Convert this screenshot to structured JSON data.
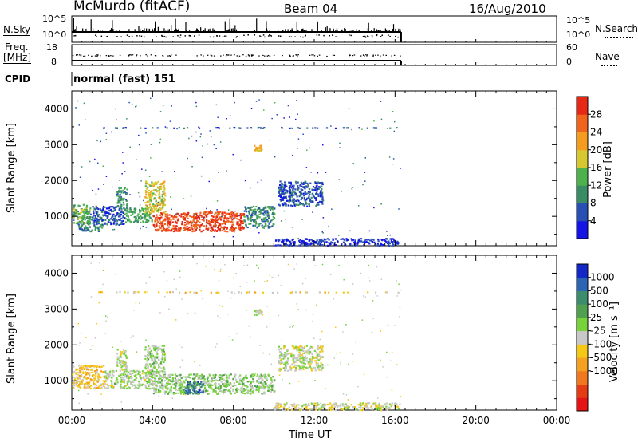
{
  "header": {
    "title": "McMurdo (fitACF)",
    "beam": "Beam 04",
    "date": "16/Aug/2010"
  },
  "strip_nsky": {
    "left_label": "N.Sky",
    "left_ticks": [
      "10^5",
      "10^0"
    ],
    "right_ticks": [
      "10^5",
      "10^0"
    ],
    "right_label": "N.Search"
  },
  "strip_freq": {
    "left_label_1": "Freq.",
    "left_label_2": "[MHz]",
    "left_ticks": [
      "18",
      "8"
    ],
    "right_ticks": [
      "60",
      "0"
    ],
    "right_label": "Nave"
  },
  "cpid": {
    "label": "CPID",
    "value": "normal (fast) 151"
  },
  "panels": {
    "ylabel": "Slant Range [km]",
    "yticks": [
      "4000",
      "3000",
      "2000",
      "1000"
    ],
    "xlabel": "Time UT",
    "xticks": [
      "00:00",
      "04:00",
      "08:00",
      "12:00",
      "16:00",
      "20:00",
      "00:00"
    ]
  },
  "colorbars": {
    "power": {
      "label": "Power [dB]",
      "ticks": [
        "28",
        "24",
        "20",
        "16",
        "12",
        "8",
        "4"
      ],
      "colors": [
        "#1414e6",
        "#2850b4",
        "#3a8c64",
        "#4db24d",
        "#d8c830",
        "#f59b1e",
        "#f0641e",
        "#e62814"
      ]
    },
    "velocity": {
      "label": "Velocity [m s⁻¹]",
      "ticks": [
        "1000",
        "500",
        "100",
        "25",
        "-25",
        "-100",
        "-500",
        "-1000"
      ],
      "colors": [
        "#1428c8",
        "#2e64b4",
        "#3c8c6e",
        "#50a050",
        "#78d23c",
        "#c8c8c8",
        "#f5c814",
        "#f5a01e",
        "#f0781e",
        "#e63c14",
        "#e61414"
      ]
    }
  },
  "chart_data": [
    {
      "type": "heatmap",
      "title": "Power [dB]",
      "xlabel": "Time UT",
      "ylabel": "Slant Range [km]",
      "xlim": [
        0,
        24
      ],
      "ylim": [
        180,
        4500
      ],
      "x_units": "hours UT",
      "data_end_hour": 16.3,
      "clim": [
        0,
        32
      ],
      "regions": [
        {
          "x": [
            0.0,
            0.9
          ],
          "y": [
            800,
            1350
          ],
          "value": 14
        },
        {
          "x": [
            0.3,
            1.5
          ],
          "y": [
            600,
            1000
          ],
          "value": 10
        },
        {
          "x": [
            1.0,
            2.6
          ],
          "y": [
            780,
            1300
          ],
          "value": 6
        },
        {
          "x": [
            2.6,
            4.0
          ],
          "y": [
            850,
            1250
          ],
          "value": 12
        },
        {
          "x": [
            4.0,
            8.5
          ],
          "y": [
            600,
            1150
          ],
          "value": 28
        },
        {
          "x": [
            8.5,
            10.0
          ],
          "y": [
            700,
            1300
          ],
          "value": 10
        },
        {
          "x": [
            3.6,
            4.6
          ],
          "y": [
            1100,
            2000
          ],
          "value": 18
        },
        {
          "x": [
            2.2,
            2.7
          ],
          "y": [
            1300,
            1850
          ],
          "value": 10
        },
        {
          "x": [
            9.0,
            9.4
          ],
          "y": [
            2850,
            3000
          ],
          "value": 20
        },
        {
          "x": [
            10.2,
            12.4
          ],
          "y": [
            1300,
            2000
          ],
          "value": 6
        },
        {
          "x": [
            1.2,
            16.2
          ],
          "y": [
            3480,
            3500
          ],
          "value": 6
        },
        {
          "x": [
            10.0,
            16.2
          ],
          "y": [
            200,
            400
          ],
          "value": 4
        }
      ]
    },
    {
      "type": "heatmap",
      "title": "Velocity [m s⁻¹]",
      "xlabel": "Time UT",
      "ylabel": "Slant Range [km]",
      "xlim": [
        0,
        24
      ],
      "ylim": [
        180,
        4500
      ],
      "x_units": "hours UT",
      "data_end_hour": 16.3,
      "clim": [
        -1000,
        1000
      ],
      "regions": [
        {
          "x": [
            0.0,
            1.6
          ],
          "y": [
            800,
            1450
          ],
          "value": -200
        },
        {
          "x": [
            1.6,
            4.0
          ],
          "y": [
            800,
            1300
          ],
          "value": 80
        },
        {
          "x": [
            4.0,
            10.0
          ],
          "y": [
            650,
            1200
          ],
          "value": 150
        },
        {
          "x": [
            5.5,
            6.5
          ],
          "y": [
            650,
            1000
          ],
          "value": 700
        },
        {
          "x": [
            3.6,
            4.6
          ],
          "y": [
            1100,
            2000
          ],
          "value": 100
        },
        {
          "x": [
            2.2,
            2.7
          ],
          "y": [
            1300,
            1900
          ],
          "value": 80
        },
        {
          "x": [
            9.0,
            9.4
          ],
          "y": [
            2850,
            3000
          ],
          "value": 60
        },
        {
          "x": [
            10.2,
            12.4
          ],
          "y": [
            1300,
            2000
          ],
          "value": 30
        },
        {
          "x": [
            1.2,
            16.2
          ],
          "y": [
            3480,
            3500
          ],
          "value": -120
        },
        {
          "x": [
            10.0,
            16.2
          ],
          "y": [
            200,
            400
          ],
          "value": -40
        }
      ]
    }
  ]
}
